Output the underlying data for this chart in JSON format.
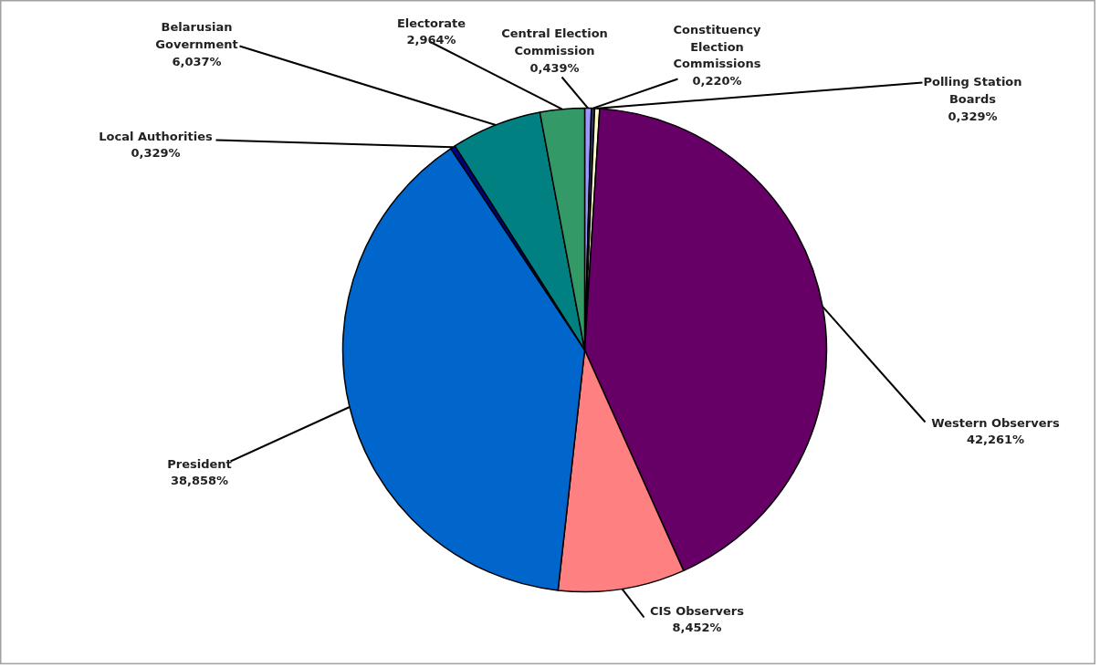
{
  "chart_data": {
    "type": "pie",
    "categories": [
      "Central Election Commission",
      "Constituency Election Commissions",
      "Polling Station Boards",
      "Western Observers",
      "CIS Observers",
      "President",
      "Local Authorities",
      "Belarusian Government",
      "Electorate"
    ],
    "values": [
      0.439,
      0.22,
      0.329,
      42.261,
      8.452,
      38.858,
      0.329,
      6.037,
      2.964
    ],
    "colors": [
      "#9999ff",
      "#333366",
      "#ffffcc",
      "#660066",
      "#ff8080",
      "#0066cc",
      "#000080",
      "#008080",
      "#339966"
    ],
    "value_labels": [
      "0,439%",
      "0,220%",
      "0,329%",
      "42,261%",
      "8,452%",
      "38,858%",
      "0,329%",
      "6,037%",
      "2,964%"
    ]
  }
}
